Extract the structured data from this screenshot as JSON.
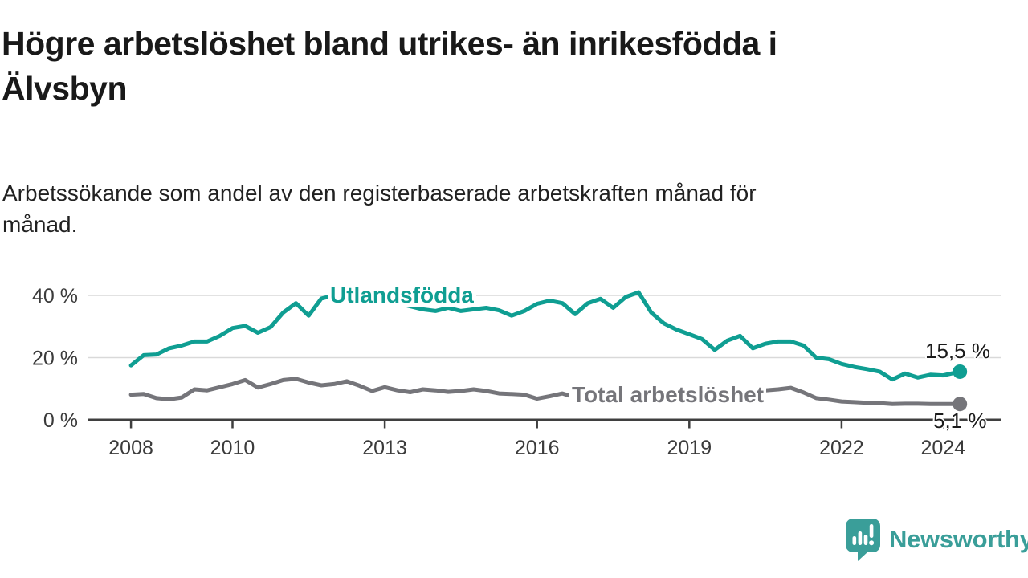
{
  "title": "Högre arbetslöshet bland utrikes- än inrikesfödda i\nÄlvsbyn",
  "subtitle": "Arbetssökande som andel av den registerbaserade arbetskraften månad för\nmånad.",
  "chart_data": {
    "type": "line",
    "title": "Högre arbetslöshet bland utrikes- än inrikesfödda i Älvsbyn",
    "xlabel": "",
    "ylabel": "",
    "xlim": [
      2007.16,
      2025.15
    ],
    "ylim": [
      0,
      43
    ],
    "grid": "horizontal",
    "grid_color": "#d9d9d9",
    "axis_color": "#3f3f3f",
    "tick_label_color": "#3b3b3b",
    "x_ticks": [
      2008,
      2010,
      2013,
      2016,
      2019,
      2022,
      2024
    ],
    "x_tick_labels": [
      "2008",
      "2010",
      "2013",
      "2016",
      "2019",
      "2022",
      "2024"
    ],
    "y_ticks": [
      0,
      20,
      40
    ],
    "y_tick_labels": [
      "0 %",
      "20 %",
      "40 %"
    ],
    "y_gridlines": [
      20,
      40
    ],
    "legend_position": "inline-labels",
    "x": [
      2008.0,
      2008.25,
      2008.5,
      2008.75,
      2009.0,
      2009.25,
      2009.5,
      2009.75,
      2010.0,
      2010.25,
      2010.5,
      2010.75,
      2011.0,
      2011.25,
      2011.5,
      2011.75,
      2012.0,
      2012.25,
      2012.5,
      2012.75,
      2013.0,
      2013.25,
      2013.5,
      2013.75,
      2014.0,
      2014.25,
      2014.5,
      2014.75,
      2015.0,
      2015.25,
      2015.5,
      2015.75,
      2016.0,
      2016.25,
      2016.5,
      2016.75,
      2017.0,
      2017.25,
      2017.5,
      2017.75,
      2018.0,
      2018.25,
      2018.5,
      2018.75,
      2019.0,
      2019.25,
      2019.5,
      2019.75,
      2020.0,
      2020.25,
      2020.5,
      2020.75,
      2021.0,
      2021.25,
      2021.5,
      2021.75,
      2022.0,
      2022.25,
      2022.5,
      2022.75,
      2023.0,
      2023.25,
      2023.5,
      2023.75,
      2024.0,
      2024.33
    ],
    "series": [
      {
        "name": "Utlandsfödda",
        "color": "#0f9e92",
        "end_label": "15,5 %",
        "end_value": 15.5,
        "values": [
          17.5,
          20.8,
          21.0,
          23.0,
          23.9,
          25.2,
          25.2,
          27.0,
          29.5,
          30.2,
          28.0,
          29.8,
          34.5,
          37.5,
          33.5,
          39.0,
          40.0,
          39.0,
          38.0,
          39.5,
          38.5,
          37.5,
          36.5,
          35.5,
          35.0,
          36.0,
          35.0,
          35.5,
          36.0,
          35.2,
          33.5,
          35.0,
          37.3,
          38.3,
          37.5,
          34.0,
          37.5,
          38.9,
          36.0,
          39.5,
          41.0,
          34.5,
          31.0,
          29.0,
          27.5,
          26.0,
          22.5,
          25.5,
          27.0,
          23.0,
          24.5,
          25.2,
          25.2,
          23.9,
          20.0,
          19.5,
          18.0,
          17.0,
          16.3,
          15.5,
          13.0,
          14.9,
          13.6,
          14.5,
          14.3,
          15.5
        ]
      },
      {
        "name": "Total arbetslöshet",
        "color": "#75757a",
        "end_label": "5,1 %",
        "end_value": 5.1,
        "values": [
          8.1,
          8.3,
          7.0,
          6.6,
          7.2,
          9.8,
          9.5,
          10.5,
          11.5,
          12.8,
          10.4,
          11.5,
          12.8,
          13.2,
          12.0,
          11.1,
          11.5,
          12.4,
          11.0,
          9.3,
          10.5,
          9.5,
          8.9,
          9.8,
          9.5,
          9.0,
          9.3,
          9.8,
          9.3,
          8.5,
          8.3,
          8.1,
          6.8,
          7.6,
          8.5,
          7.2,
          8.0,
          8.5,
          8.0,
          9.0,
          9.8,
          8.8,
          8.0,
          8.2,
          8.0,
          7.6,
          7.4,
          7.8,
          8.2,
          9.0,
          9.5,
          9.8,
          10.3,
          8.8,
          7.0,
          6.5,
          5.9,
          5.7,
          5.5,
          5.4,
          5.1,
          5.2,
          5.2,
          5.1,
          5.1,
          5.1
        ]
      }
    ]
  },
  "branding": {
    "name": "Newsworthy",
    "color": "#3a9e99",
    "icon": "newsworthy-speech-bubble-chart-icon"
  }
}
